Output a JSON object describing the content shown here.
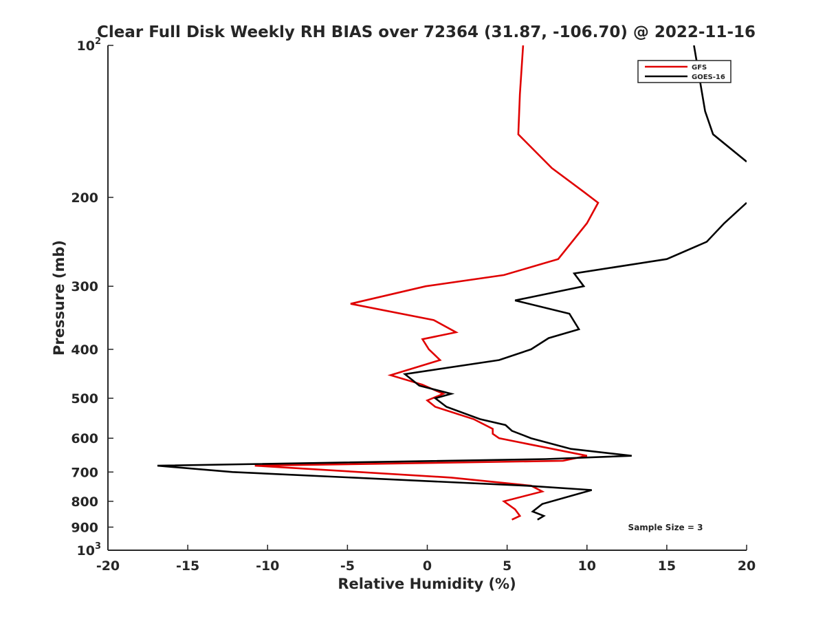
{
  "chart_data": {
    "type": "line",
    "title": "Clear Full Disk Weekly RH BIAS over 72364 (31.87, -106.70) @ 2022-11-16",
    "xlabel": "Relative Humidity (%)",
    "ylabel": "Pressure (mb)",
    "xlim": [
      -20,
      20
    ],
    "ylim": [
      100,
      1000
    ],
    "y_scale": "log",
    "y_reversed": true,
    "x_ticks": [
      "-20",
      "-15",
      "-10",
      "-5",
      "0",
      "5",
      "10",
      "15",
      "20"
    ],
    "y_ticks": [
      {
        "value": 100,
        "base": "10",
        "exp": "2"
      },
      {
        "value": 200,
        "label": "200"
      },
      {
        "value": 300,
        "label": "300"
      },
      {
        "value": 400,
        "label": "400"
      },
      {
        "value": 500,
        "label": "500"
      },
      {
        "value": 600,
        "label": "600"
      },
      {
        "value": 700,
        "label": "700"
      },
      {
        "value": 800,
        "label": "800"
      },
      {
        "value": 900,
        "label": "900"
      },
      {
        "value": 1000,
        "base": "10",
        "exp": "3"
      }
    ],
    "legend_position": "top-right",
    "grid": false,
    "annotation": "Sample Size = 3",
    "series": [
      {
        "name": "GFS",
        "color": "#e00000",
        "points": [
          [
            6.0,
            100
          ],
          [
            5.8,
            125
          ],
          [
            5.7,
            150
          ],
          [
            7.8,
            175
          ],
          [
            9.8,
            195
          ],
          [
            10.7,
            205
          ],
          [
            10.0,
            225
          ],
          [
            8.2,
            265
          ],
          [
            4.8,
            285
          ],
          [
            -0.1,
            300
          ],
          [
            -4.8,
            325
          ],
          [
            0.4,
            350
          ],
          [
            1.8,
            370
          ],
          [
            -0.3,
            382
          ],
          [
            0.1,
            400
          ],
          [
            0.8,
            420
          ],
          [
            -2.3,
            450
          ],
          [
            -0.3,
            470
          ],
          [
            1.0,
            490
          ],
          [
            0.0,
            505
          ],
          [
            0.5,
            520
          ],
          [
            2.9,
            550
          ],
          [
            4.1,
            575
          ],
          [
            4.1,
            588
          ],
          [
            4.5,
            600
          ],
          [
            10.0,
            650
          ],
          [
            8.5,
            665
          ],
          [
            -10.8,
            680
          ],
          [
            1.5,
            718
          ],
          [
            6.5,
            745
          ],
          [
            7.2,
            765
          ],
          [
            4.8,
            800
          ],
          [
            5.5,
            830
          ],
          [
            5.8,
            855
          ],
          [
            5.3,
            870
          ]
        ]
      },
      {
        "name": "GOES-16",
        "color": "#000000",
        "points": [
          [
            16.7,
            100
          ],
          [
            17.4,
            135
          ],
          [
            17.9,
            150
          ],
          [
            20.0,
            170
          ],
          [
            null,
            null
          ],
          [
            20.0,
            205
          ],
          [
            18.6,
            225
          ],
          [
            17.5,
            245
          ],
          [
            15.0,
            265
          ],
          [
            9.2,
            283
          ],
          [
            9.8,
            300
          ],
          [
            5.5,
            320
          ],
          [
            8.9,
            340
          ],
          [
            9.5,
            365
          ],
          [
            7.6,
            380
          ],
          [
            6.5,
            400
          ],
          [
            4.5,
            420
          ],
          [
            -1.4,
            448
          ],
          [
            -0.5,
            472
          ],
          [
            1.5,
            490
          ],
          [
            0.5,
            500
          ],
          [
            1.2,
            520
          ],
          [
            3.3,
            550
          ],
          [
            4.9,
            565
          ],
          [
            5.3,
            580
          ],
          [
            6.5,
            600
          ],
          [
            9.0,
            630
          ],
          [
            12.8,
            650
          ],
          [
            7.4,
            660
          ],
          [
            -16.9,
            680
          ],
          [
            -12.2,
            700
          ],
          [
            6.2,
            745
          ],
          [
            10.3,
            760
          ],
          [
            7.2,
            810
          ],
          [
            6.6,
            838
          ],
          [
            7.3,
            855
          ],
          [
            6.9,
            870
          ]
        ]
      }
    ]
  }
}
